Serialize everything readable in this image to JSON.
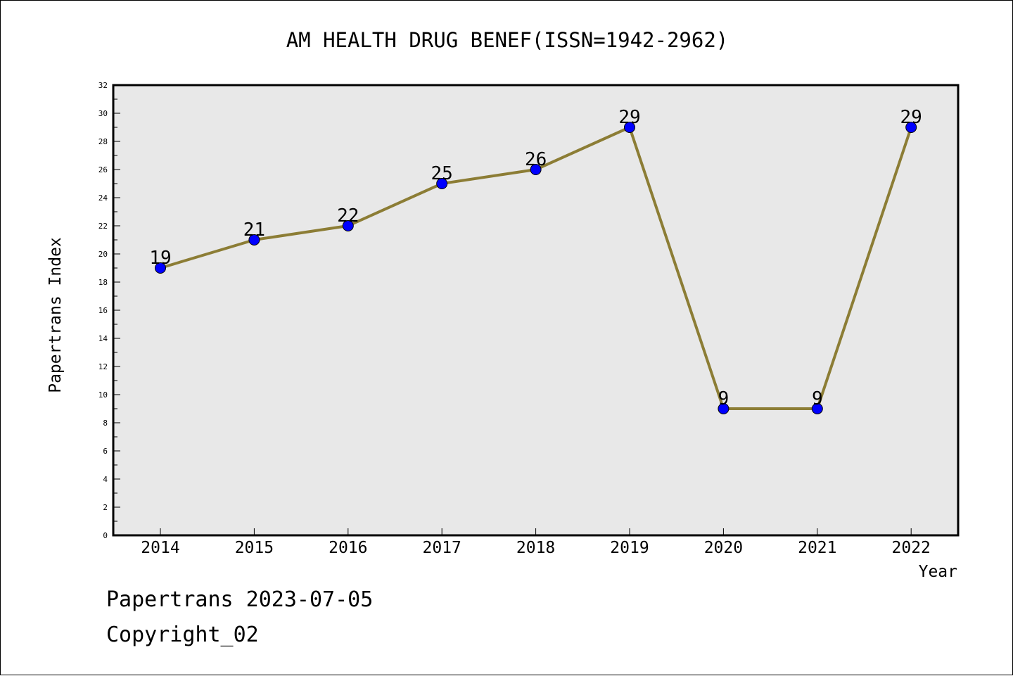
{
  "chart_data": {
    "type": "line",
    "title": "AM HEALTH DRUG BENEF(ISSN=1942-2962)",
    "xlabel": "Year",
    "ylabel": "Papertrans Index",
    "categories": [
      "2014",
      "2015",
      "2016",
      "2017",
      "2018",
      "2019",
      "2020",
      "2021",
      "2022"
    ],
    "series": [
      {
        "values": [
          19,
          21,
          22,
          25,
          26,
          29,
          9,
          9,
          29
        ]
      }
    ],
    "data_labels": [
      "19",
      "21",
      "22",
      "25",
      "26",
      "29",
      "9",
      "9",
      "29"
    ],
    "ylim": [
      0,
      32
    ],
    "y_major_ticks": [
      0,
      2,
      4,
      6,
      8,
      10,
      12,
      14,
      16,
      18,
      20,
      22,
      24,
      26,
      28,
      30,
      32
    ],
    "y_minor_tick_step": 1,
    "grid": false,
    "legend": "none",
    "colors": {
      "line": "#8c7d35",
      "marker": "#0000ff",
      "plot_background": "#e8e8e8",
      "axis": "#000000"
    }
  },
  "footer": {
    "line1": "Papertrans 2023-07-05",
    "line2": "Copyright_02"
  }
}
